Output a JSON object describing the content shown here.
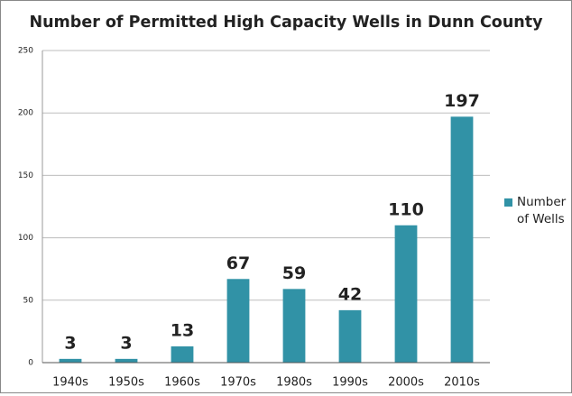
{
  "chart_data": {
    "type": "bar",
    "title": "Number of Permitted High Capacity Wells in Dunn County",
    "categories": [
      "1940s",
      "1950s",
      "1960s",
      "1970s",
      "1980s",
      "1990s",
      "2000s",
      "2010s"
    ],
    "series": [
      {
        "name": "Number of Wells",
        "color": "#3192a6",
        "values": [
          3,
          3,
          13,
          67,
          59,
          42,
          110,
          197
        ]
      }
    ],
    "ylim": [
      0,
      250
    ],
    "yticks": [
      0,
      50,
      100,
      150,
      200,
      250
    ],
    "grid": true,
    "legend": "right"
  }
}
